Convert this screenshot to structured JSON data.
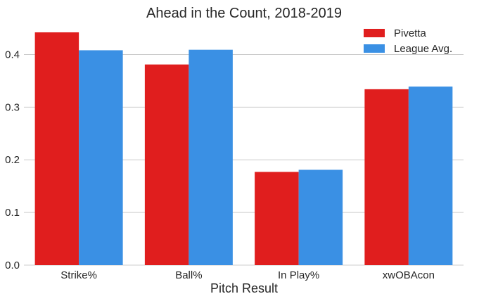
{
  "chart_data": {
    "type": "bar",
    "title": "Ahead in the Count, 2018-2019",
    "xlabel": "Pitch Result",
    "ylabel": "",
    "categories": [
      "Strike%",
      "Ball%",
      "In Play%",
      "xwOBAcon"
    ],
    "series": [
      {
        "name": "Pivetta",
        "values": [
          0.442,
          0.381,
          0.177,
          0.334
        ]
      },
      {
        "name": "League Avg.",
        "values": [
          0.408,
          0.409,
          0.181,
          0.339
        ]
      }
    ],
    "ylim": [
      0,
      0.45
    ],
    "yticks": [
      0.0,
      0.1,
      0.2,
      0.3,
      0.4
    ],
    "ytick_labels": [
      "0.0",
      "0.1",
      "0.2",
      "0.3",
      "0.4"
    ],
    "grid": "y",
    "legend_position": "top-right"
  },
  "colors": {
    "series": [
      "#e01e1e",
      "#3a90e4"
    ],
    "grid": "#cccccc",
    "text": "#262626",
    "background": "#ffffff"
  }
}
